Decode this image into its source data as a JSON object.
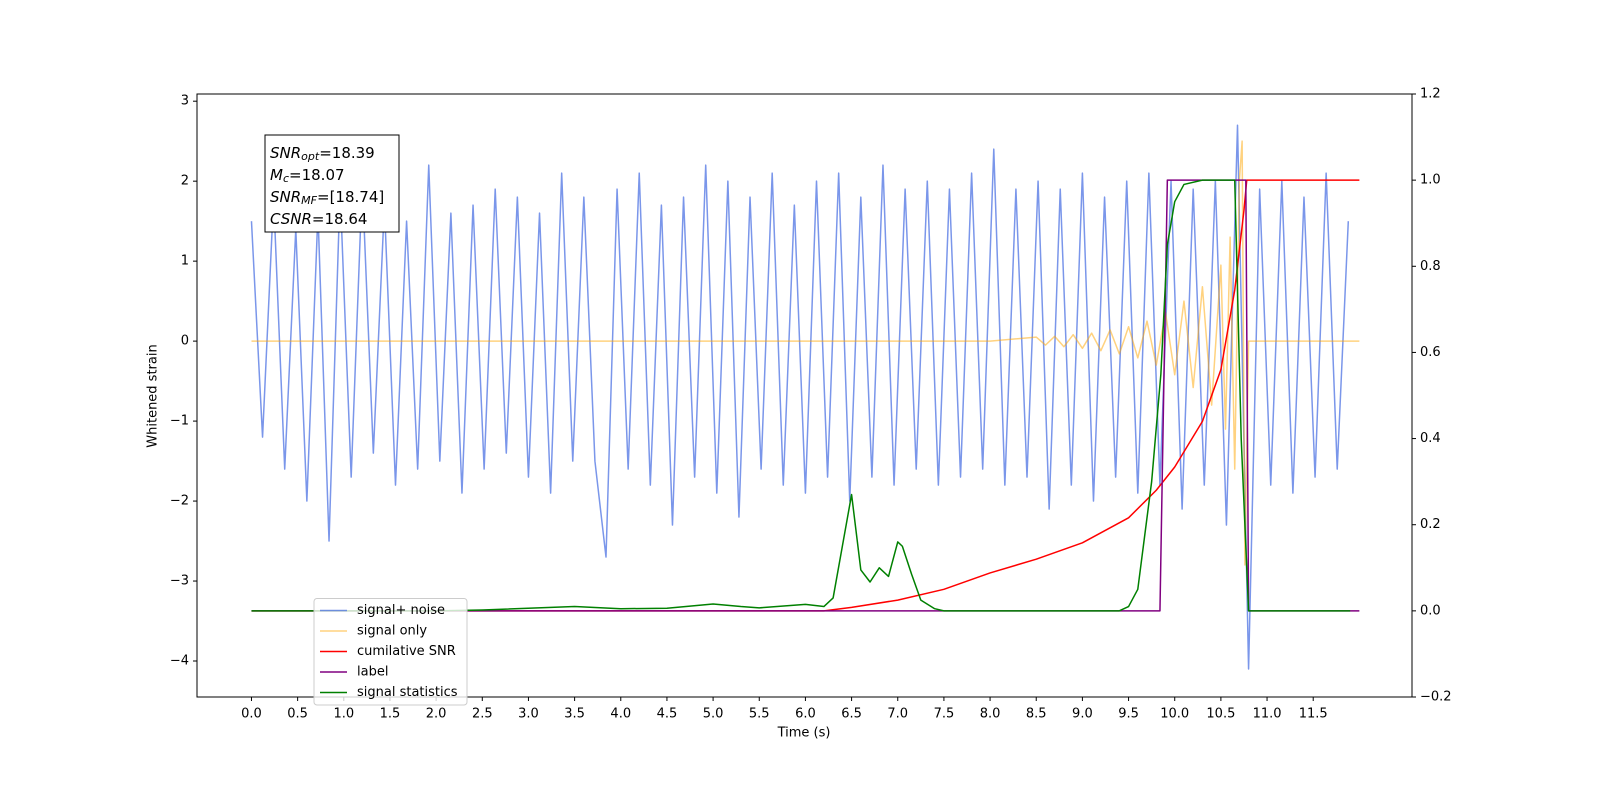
{
  "chart_data": {
    "type": "line",
    "xlabel": "Time (s)",
    "ylabel": "Whitened strain",
    "xlim": [
      -0.59,
      12.57
    ],
    "ylim": [
      -4.45,
      3.09
    ],
    "y2lim": [
      -0.2,
      1.2
    ],
    "xticks": [
      {
        "value": 0,
        "label": "0.0"
      },
      0.5,
      {
        "value": 1,
        "label": "1.0"
      },
      1.5,
      {
        "value": 2,
        "label": "2.0"
      },
      2.5,
      {
        "value": 3,
        "label": "3.0"
      },
      3.5,
      {
        "value": 4,
        "label": "4.0"
      },
      4.5,
      {
        "value": 5,
        "label": "5.0"
      },
      5.5,
      {
        "value": 6,
        "label": "6.0"
      },
      6.5,
      {
        "value": 7,
        "label": "7.0"
      },
      7.5,
      {
        "value": 8,
        "label": "8.0"
      },
      8.5,
      {
        "value": 9,
        "label": "9.0"
      },
      9.5,
      {
        "value": 10,
        "label": "10.0"
      },
      10.5,
      {
        "value": 11,
        "label": "11.0"
      },
      11.5
    ],
    "yticks": [
      {
        "value": -4,
        "label": "−4"
      },
      {
        "value": -3,
        "label": "−3"
      },
      {
        "value": -2,
        "label": "−2"
      },
      {
        "value": -1,
        "label": "−1"
      },
      0,
      1,
      2,
      3
    ],
    "y2ticks": [
      {
        "value": -0.2,
        "label": "−0.2"
      },
      {
        "value": 0,
        "label": "0.0"
      },
      0.2,
      0.4,
      0.6,
      0.8,
      {
        "value": 1,
        "label": "1.0"
      },
      1.2
    ],
    "legend": "lower left",
    "annotation": [
      {
        "main": "SNR",
        "sub": "opt",
        "rest": "=18.39"
      },
      {
        "main": "M",
        "sub": "c",
        "rest": "=18.07"
      },
      {
        "main": "SNR",
        "sub": "MF",
        "rest": "=[18.74]"
      },
      {
        "main": "CSNR",
        "rest": "=18.64"
      }
    ],
    "series": [
      {
        "name": "signal+ noise",
        "color": "#4169e1",
        "alpha": 0.7,
        "x": [
          0,
          0.12,
          0.24,
          0.36,
          0.48,
          0.6,
          0.72,
          0.84,
          0.96,
          1.08,
          1.2,
          1.32,
          1.44,
          1.56,
          1.68,
          1.8,
          1.92,
          2.04,
          2.16,
          2.28,
          2.4,
          2.52,
          2.64,
          2.76,
          2.88,
          3,
          3.12,
          3.24,
          3.36,
          3.48,
          3.6,
          3.72,
          3.84,
          3.96,
          4.08,
          4.2,
          4.32,
          4.44,
          4.56,
          4.68,
          4.8,
          4.92,
          5.04,
          5.16,
          5.28,
          5.4,
          5.52,
          5.64,
          5.76,
          5.88,
          6,
          6.12,
          6.24,
          6.36,
          6.48,
          6.6,
          6.72,
          6.84,
          6.96,
          7.08,
          7.2,
          7.32,
          7.44,
          7.56,
          7.68,
          7.8,
          7.92,
          8.04,
          8.16,
          8.28,
          8.4,
          8.52,
          8.64,
          8.76,
          8.88,
          9,
          9.12,
          9.24,
          9.36,
          9.48,
          9.6,
          9.72,
          9.84,
          9.96,
          10.08,
          10.2,
          10.32,
          10.44,
          10.56,
          10.68,
          10.8,
          10.92,
          11.04,
          11.16,
          11.28,
          11.4,
          11.52,
          11.64,
          11.76,
          11.88
        ],
        "values": [
          1.5,
          -1.2,
          1.8,
          -1.6,
          1.4,
          -2.0,
          1.6,
          -2.5,
          1.9,
          -1.7,
          2.0,
          -1.4,
          1.7,
          -1.8,
          1.5,
          -1.6,
          2.2,
          -1.5,
          1.6,
          -1.9,
          1.7,
          -1.6,
          1.9,
          -1.4,
          1.8,
          -1.7,
          1.6,
          -1.9,
          2.1,
          -1.5,
          1.8,
          -1.5,
          -2.7,
          1.9,
          -1.6,
          2.1,
          -1.8,
          1.7,
          -2.3,
          1.8,
          -1.7,
          2.2,
          -1.9,
          2.0,
          -2.2,
          1.8,
          -1.6,
          2.1,
          -1.8,
          1.7,
          -1.9,
          2.0,
          -1.7,
          2.1,
          -2.0,
          1.8,
          -1.7,
          2.2,
          -1.8,
          1.9,
          -1.6,
          2.0,
          -1.8,
          1.9,
          -1.7,
          2.1,
          -1.6,
          2.4,
          -1.8,
          1.9,
          -1.7,
          2.0,
          -2.1,
          1.9,
          -1.8,
          2.1,
          -2.0,
          1.8,
          -1.7,
          2.0,
          -1.9,
          2.1,
          -1.8,
          2.0,
          -2.1,
          1.9,
          -1.8,
          2.0,
          -2.3,
          2.7,
          -4.1,
          1.9,
          -1.8,
          2.0,
          -1.9,
          1.8,
          -1.7,
          2.1,
          -1.6,
          1.5
        ]
      },
      {
        "name": "signal only",
        "color": "#ffa500",
        "alpha": 0.5,
        "x": [
          0,
          8.0,
          8.5,
          8.6,
          8.7,
          8.8,
          8.9,
          9.0,
          9.1,
          9.2,
          9.3,
          9.4,
          9.5,
          9.6,
          9.7,
          9.8,
          9.9,
          10.0,
          10.1,
          10.2,
          10.3,
          10.4,
          10.5,
          10.55,
          10.6,
          10.65,
          10.7,
          10.73,
          10.76,
          10.8,
          12.0
        ],
        "values": [
          0,
          0,
          0.05,
          -0.05,
          0.06,
          -0.07,
          0.08,
          -0.09,
          0.1,
          -0.12,
          0.14,
          -0.16,
          0.18,
          -0.21,
          0.25,
          -0.3,
          0.36,
          -0.42,
          0.5,
          -0.58,
          0.68,
          -0.8,
          0.95,
          -1.1,
          1.3,
          -1.6,
          2.0,
          2.5,
          -2.8,
          0,
          0
        ]
      },
      {
        "name": "cumilative SNR",
        "color": "#ff0000",
        "axis": "y2",
        "x": [
          0,
          6.2,
          6.5,
          7.0,
          7.5,
          8.0,
          8.5,
          9.0,
          9.5,
          9.8,
          10.0,
          10.3,
          10.5,
          10.65,
          10.75,
          10.78,
          12.0
        ],
        "values": [
          0,
          0,
          0.008,
          0.025,
          0.05,
          0.088,
          0.12,
          0.158,
          0.216,
          0.28,
          0.334,
          0.44,
          0.56,
          0.745,
          0.93,
          1.0,
          1.0
        ]
      },
      {
        "name": "label",
        "color": "#800080",
        "axis": "y2",
        "x": [
          0,
          9.84,
          9.92,
          10.77,
          10.8,
          12.0
        ],
        "values": [
          0,
          0,
          1,
          1,
          0,
          0
        ]
      },
      {
        "name": "signal statistics",
        "color": "#008000",
        "axis": "y2",
        "x": [
          0,
          2.0,
          2.5,
          3.5,
          4.0,
          4.5,
          5.0,
          5.3,
          5.5,
          6.0,
          6.2,
          6.3,
          6.4,
          6.5,
          6.6,
          6.7,
          6.8,
          6.9,
          7.0,
          7.05,
          7.15,
          7.25,
          7.4,
          7.5,
          9.4,
          9.5,
          9.6,
          9.75,
          9.85,
          9.92,
          10.0,
          10.1,
          10.3,
          10.65,
          10.72,
          10.8,
          11.9
        ],
        "values": [
          0,
          0,
          0.002,
          0.01,
          0.005,
          0.006,
          0.016,
          0.01,
          0.007,
          0.015,
          0.01,
          0.03,
          0.15,
          0.27,
          0.095,
          0.067,
          0.1,
          0.08,
          0.16,
          0.15,
          0.085,
          0.025,
          0.005,
          0,
          0,
          0.01,
          0.05,
          0.3,
          0.55,
          0.85,
          0.95,
          0.99,
          1.0,
          1.0,
          0.4,
          0,
          0
        ]
      }
    ]
  }
}
